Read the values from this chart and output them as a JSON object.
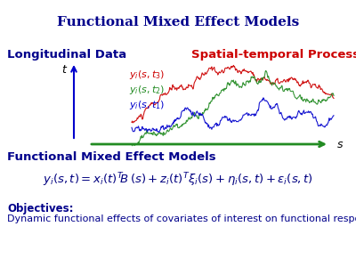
{
  "title": "Functional Mixed Effect Models",
  "title_color": "#00008B",
  "title_fontsize": 11,
  "longitudinal_label": "Longitudinal Data",
  "longitudinal_color": "#00008B",
  "longitudinal_fontsize": 9.5,
  "spatial_label": "Spatial-temporal Process",
  "spatial_color": "#CC0000",
  "spatial_fontsize": 9.5,
  "y_axis_label": "t",
  "s_axis_label": "s",
  "curve_colors": [
    "#CC0000",
    "#228B22",
    "#0000CC"
  ],
  "equation_color": "#000080",
  "objectives_header": "Objectives:",
  "objectives_text": "Dynamic functional effects of covariates of interest on functional response.",
  "objectives_color": "#00008B",
  "background_color": "#ffffff",
  "section_label": "Functional Mixed Effect Models",
  "section_color": "#00008B",
  "section_fontsize": 9.5
}
